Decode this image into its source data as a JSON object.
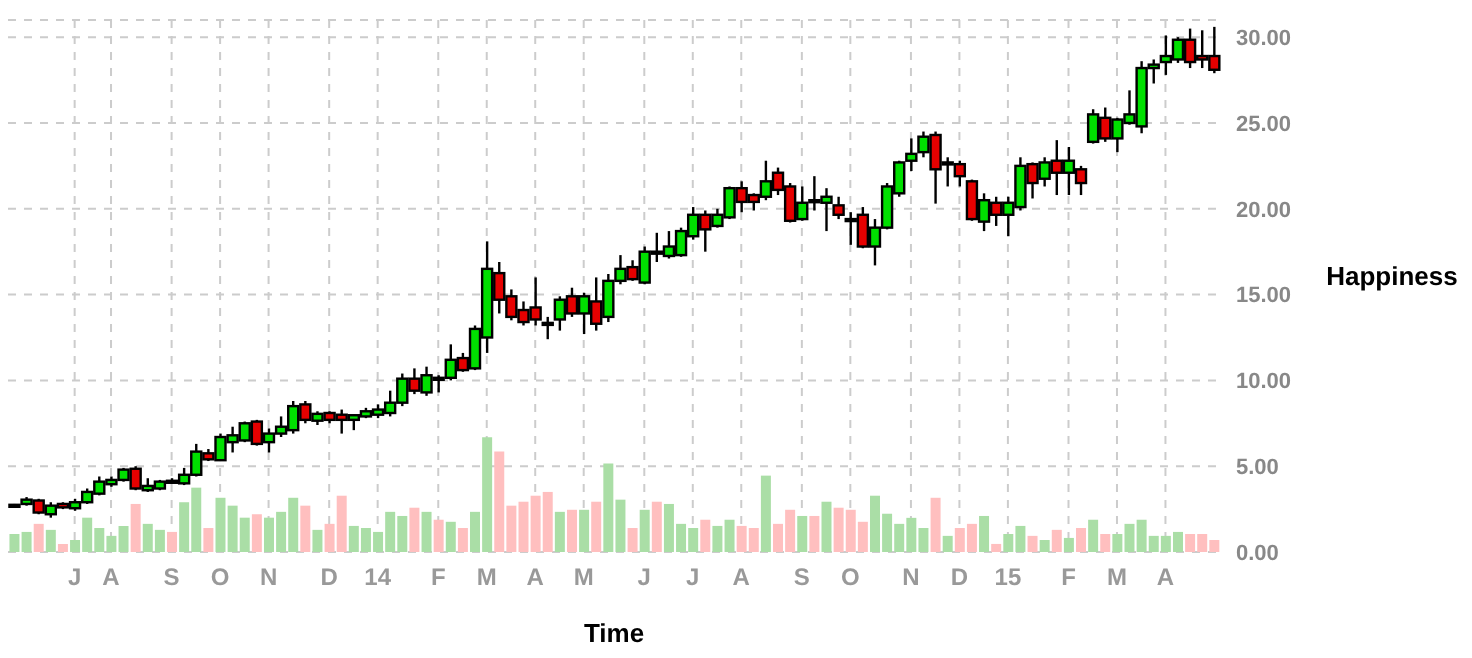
{
  "chart_data": {
    "type": "candlestick",
    "xlabel": "Time",
    "ylabel": "Happiness",
    "categories": [
      null,
      null,
      null,
      null,
      null,
      "J",
      null,
      null,
      "A",
      null,
      null,
      null,
      null,
      "S",
      null,
      null,
      null,
      "O",
      null,
      null,
      null,
      "N",
      null,
      null,
      null,
      null,
      "D",
      null,
      null,
      null,
      "14",
      null,
      null,
      null,
      null,
      "F",
      null,
      null,
      null,
      "M",
      null,
      null,
      null,
      "A",
      null,
      null,
      null,
      "M",
      null,
      null,
      null,
      null,
      "J",
      null,
      null,
      null,
      "J",
      null,
      null,
      null,
      "A",
      null,
      null,
      null,
      null,
      "S",
      null,
      null,
      null,
      "O",
      null,
      null,
      null,
      null,
      "N",
      null,
      null,
      null,
      "D",
      null,
      null,
      null,
      "15",
      null,
      null,
      null,
      null,
      "F",
      null,
      null,
      null,
      "M",
      null,
      null,
      null,
      "A",
      null,
      null,
      null,
      null
    ],
    "ohlc": [
      [
        2.7,
        2.8,
        2.6,
        2.75
      ],
      [
        2.8,
        3.2,
        2.7,
        3.05
      ],
      [
        3.0,
        3.1,
        2.2,
        2.3
      ],
      [
        2.2,
        2.9,
        2.0,
        2.7
      ],
      [
        2.8,
        2.9,
        2.5,
        2.6
      ],
      [
        2.55,
        3.1,
        2.4,
        2.9
      ],
      [
        2.9,
        3.7,
        2.8,
        3.5
      ],
      [
        3.4,
        4.4,
        3.3,
        4.1
      ],
      [
        3.95,
        4.4,
        3.8,
        4.2
      ],
      [
        4.2,
        4.9,
        4.1,
        4.8
      ],
      [
        4.85,
        5.0,
        3.6,
        3.7
      ],
      [
        3.6,
        4.3,
        3.5,
        3.85
      ],
      [
        3.7,
        4.2,
        3.6,
        4.1
      ],
      [
        4.15,
        4.3,
        4.0,
        4.1
      ],
      [
        4.0,
        4.9,
        3.9,
        4.5
      ],
      [
        4.5,
        6.3,
        4.4,
        5.85
      ],
      [
        5.75,
        6.0,
        5.3,
        5.4
      ],
      [
        5.35,
        6.9,
        5.3,
        6.7
      ],
      [
        6.4,
        7.3,
        5.8,
        6.8
      ],
      [
        6.5,
        7.6,
        6.4,
        7.5
      ],
      [
        7.6,
        7.7,
        6.2,
        6.3
      ],
      [
        6.4,
        7.2,
        5.8,
        6.9
      ],
      [
        6.9,
        7.9,
        6.7,
        7.3
      ],
      [
        7.1,
        8.8,
        6.9,
        8.5
      ],
      [
        8.6,
        8.8,
        7.5,
        7.7
      ],
      [
        7.65,
        8.2,
        7.4,
        8.05
      ],
      [
        8.1,
        8.2,
        7.5,
        7.7
      ],
      [
        8.0,
        8.3,
        6.9,
        7.7
      ],
      [
        7.7,
        8.0,
        7.1,
        7.97
      ],
      [
        7.9,
        8.4,
        7.8,
        8.2
      ],
      [
        8.0,
        8.6,
        7.8,
        8.3
      ],
      [
        8.1,
        9.4,
        7.9,
        8.7
      ],
      [
        8.7,
        10.4,
        8.5,
        10.1
      ],
      [
        10.1,
        10.7,
        9.2,
        9.4
      ],
      [
        9.3,
        10.8,
        9.1,
        10.3
      ],
      [
        10.15,
        10.3,
        9.3,
        10.1
      ],
      [
        10.15,
        12.1,
        10.0,
        11.2
      ],
      [
        11.3,
        11.6,
        10.5,
        10.6
      ],
      [
        10.7,
        13.2,
        10.6,
        13.0
      ],
      [
        12.5,
        18.1,
        11.6,
        16.5
      ],
      [
        16.25,
        16.9,
        13.9,
        14.7
      ],
      [
        14.9,
        15.3,
        13.5,
        13.7
      ],
      [
        14.1,
        14.6,
        13.2,
        13.4
      ],
      [
        14.25,
        16.0,
        13.2,
        13.55
      ],
      [
        13.35,
        13.7,
        12.4,
        13.28
      ],
      [
        13.55,
        14.9,
        12.9,
        14.7
      ],
      [
        14.9,
        15.4,
        13.7,
        13.9
      ],
      [
        13.9,
        15.1,
        12.7,
        14.9
      ],
      [
        14.6,
        16.0,
        12.9,
        13.3
      ],
      [
        13.7,
        16.2,
        13.4,
        15.8
      ],
      [
        15.8,
        17.3,
        15.6,
        16.5
      ],
      [
        16.6,
        17.0,
        15.8,
        15.9
      ],
      [
        15.7,
        17.8,
        15.6,
        17.5
      ],
      [
        17.5,
        18.6,
        16.9,
        17.4
      ],
      [
        17.25,
        18.7,
        17.1,
        17.8
      ],
      [
        17.3,
        18.9,
        17.2,
        18.7
      ],
      [
        18.4,
        20.1,
        18.2,
        19.65
      ],
      [
        19.65,
        19.9,
        17.5,
        18.8
      ],
      [
        19.0,
        20.0,
        18.9,
        19.65
      ],
      [
        19.5,
        21.3,
        19.4,
        21.2
      ],
      [
        21.2,
        21.6,
        19.8,
        20.4
      ],
      [
        20.8,
        20.9,
        19.9,
        20.4
      ],
      [
        20.7,
        22.8,
        20.5,
        21.6
      ],
      [
        22.1,
        22.4,
        20.8,
        21.1
      ],
      [
        21.3,
        21.5,
        19.2,
        19.3
      ],
      [
        19.4,
        21.3,
        19.3,
        20.35
      ],
      [
        20.5,
        21.9,
        19.9,
        20.45
      ],
      [
        20.35,
        21.2,
        18.7,
        20.7
      ],
      [
        20.2,
        20.7,
        19.4,
        19.65
      ],
      [
        19.4,
        19.8,
        17.9,
        19.35
      ],
      [
        19.65,
        20.1,
        17.7,
        17.8
      ],
      [
        17.8,
        19.4,
        16.7,
        18.9
      ],
      [
        18.9,
        21.5,
        18.8,
        21.3
      ],
      [
        20.9,
        22.8,
        20.7,
        22.7
      ],
      [
        22.8,
        24.1,
        22.2,
        23.2
      ],
      [
        23.3,
        24.5,
        23.0,
        24.2
      ],
      [
        24.3,
        24.5,
        20.3,
        22.3
      ],
      [
        22.6,
        23.0,
        21.3,
        22.7
      ],
      [
        22.6,
        22.8,
        21.3,
        21.9
      ],
      [
        21.6,
        21.7,
        19.3,
        19.4
      ],
      [
        19.25,
        20.9,
        18.7,
        20.5
      ],
      [
        20.35,
        20.7,
        19.0,
        19.65
      ],
      [
        19.65,
        20.7,
        18.4,
        20.35
      ],
      [
        20.1,
        23.0,
        19.9,
        22.5
      ],
      [
        22.6,
        22.7,
        20.6,
        21.5
      ],
      [
        21.75,
        23.0,
        21.3,
        22.7
      ],
      [
        22.8,
        24.0,
        20.8,
        22.1
      ],
      [
        22.1,
        23.6,
        20.8,
        22.8
      ],
      [
        22.3,
        22.5,
        20.8,
        21.5
      ],
      [
        23.9,
        25.8,
        23.8,
        25.5
      ],
      [
        25.3,
        25.9,
        23.9,
        24.1
      ],
      [
        24.1,
        25.3,
        23.3,
        25.2
      ],
      [
        25.0,
        26.9,
        24.9,
        25.5
      ],
      [
        24.8,
        28.6,
        24.4,
        28.2
      ],
      [
        28.2,
        28.7,
        27.3,
        28.4
      ],
      [
        28.55,
        30.1,
        27.8,
        28.9
      ],
      [
        28.7,
        30.0,
        28.5,
        29.85
      ],
      [
        29.85,
        30.5,
        28.2,
        28.55
      ],
      [
        28.9,
        30.4,
        28.2,
        28.7
      ],
      [
        28.9,
        30.6,
        27.9,
        28.1
      ]
    ],
    "colors": [
      "#00e000",
      "#00e000",
      "#e60000",
      "#00e000",
      "#e60000",
      "#00e000",
      "#00e000",
      "#00e000",
      "#00e000",
      "#00e000",
      "#e60000",
      "#00e000",
      "#00e000",
      "#e60000",
      "#00e000",
      "#00e000",
      "#e60000",
      "#00e000",
      "#00e000",
      "#00e000",
      "#e60000",
      "#00e000",
      "#00e000",
      "#00e000",
      "#e60000",
      "#00e000",
      "#e60000",
      "#e60000",
      "#00e000",
      "#00e000",
      "#00e000",
      "#00e000",
      "#00e000",
      "#e60000",
      "#00e000",
      "#e60000",
      "#00e000",
      "#e60000",
      "#00e000",
      "#00e000",
      "#e60000",
      "#e60000",
      "#e60000",
      "#e60000",
      "#e60000",
      "#00e000",
      "#e60000",
      "#00e000",
      "#e60000",
      "#00e000",
      "#00e000",
      "#e60000",
      "#00e000",
      "#e60000",
      "#00e000",
      "#00e000",
      "#00e000",
      "#e60000",
      "#00e000",
      "#00e000",
      "#e60000",
      "#e60000",
      "#00e000",
      "#e60000",
      "#e60000",
      "#00e000",
      "#e60000",
      "#00e000",
      "#e60000",
      "#e60000",
      "#e60000",
      "#00e000",
      "#00e000",
      "#00e000",
      "#00e000",
      "#00e000",
      "#e60000",
      "#00e000",
      "#e60000",
      "#e60000",
      "#00e000",
      "#e60000",
      "#00e000",
      "#00e000",
      "#e60000",
      "#00e000",
      "#e60000",
      "#00e000",
      "#e60000",
      "#00e000",
      "#e60000",
      "#00e000",
      "#00e000",
      "#00e000",
      "#00e000",
      "#00e000",
      "#00e000",
      "#e60000",
      "#e60000",
      "#e60000"
    ],
    "series": [
      {
        "type": "bar",
        "values": [
          1.05,
          1.17,
          1.64,
          1.29,
          0.47,
          0.7,
          2.0,
          1.4,
          0.94,
          1.52,
          2.8,
          1.64,
          1.29,
          1.17,
          2.9,
          3.75,
          1.4,
          3.16,
          2.7,
          2.0,
          2.2,
          2.0,
          2.34,
          3.16,
          2.7,
          1.29,
          1.64,
          3.28,
          1.52,
          1.4,
          1.17,
          2.34,
          2.1,
          2.58,
          2.34,
          1.88,
          1.76,
          1.4,
          2.34,
          6.68,
          5.86,
          2.7,
          2.93,
          3.28,
          3.5,
          2.34,
          2.46,
          2.46,
          2.93,
          5.16,
          3.05,
          1.4,
          2.46,
          2.93,
          2.8,
          1.64,
          1.4,
          1.88,
          1.52,
          1.88,
          1.52,
          1.4,
          4.45,
          1.64,
          2.46,
          2.1,
          2.1,
          2.93,
          2.58,
          2.46,
          1.76,
          3.28,
          2.23,
          1.64,
          1.99,
          1.4,
          3.16,
          0.94,
          1.4,
          1.64,
          2.1,
          0.47,
          1.05,
          1.52,
          0.94,
          0.7,
          1.29,
          0.82,
          1.4,
          1.88,
          1.05,
          1.05,
          1.64,
          1.88,
          0.94,
          0.94,
          1.17,
          1.05,
          1.05,
          0.7
        ],
        "colors": [
          "#aadea6",
          "#aadea6",
          "#ffbfbf",
          "#aadea6",
          "#ffbfbf",
          "#aadea6",
          "#aadea6",
          "#aadea6",
          "#aadea6",
          "#aadea6",
          "#ffbfbf",
          "#aadea6",
          "#aadea6",
          "#ffbfbf",
          "#aadea6",
          "#aadea6",
          "#ffbfbf",
          "#aadea6",
          "#aadea6",
          "#aadea6",
          "#ffbfbf",
          "#aadea6",
          "#aadea6",
          "#aadea6",
          "#ffbfbf",
          "#aadea6",
          "#ffbfbf",
          "#ffbfbf",
          "#aadea6",
          "#aadea6",
          "#aadea6",
          "#aadea6",
          "#aadea6",
          "#ffbfbf",
          "#aadea6",
          "#ffbfbf",
          "#aadea6",
          "#ffbfbf",
          "#aadea6",
          "#aadea6",
          "#ffbfbf",
          "#ffbfbf",
          "#ffbfbf",
          "#ffbfbf",
          "#ffbfbf",
          "#aadea6",
          "#ffbfbf",
          "#aadea6",
          "#ffbfbf",
          "#aadea6",
          "#aadea6",
          "#ffbfbf",
          "#aadea6",
          "#ffbfbf",
          "#aadea6",
          "#aadea6",
          "#aadea6",
          "#ffbfbf",
          "#aadea6",
          "#aadea6",
          "#ffbfbf",
          "#ffbfbf",
          "#aadea6",
          "#ffbfbf",
          "#ffbfbf",
          "#aadea6",
          "#ffbfbf",
          "#aadea6",
          "#ffbfbf",
          "#ffbfbf",
          "#ffbfbf",
          "#aadea6",
          "#aadea6",
          "#aadea6",
          "#aadea6",
          "#aadea6",
          "#ffbfbf",
          "#aadea6",
          "#ffbfbf",
          "#ffbfbf",
          "#aadea6",
          "#ffbfbf",
          "#aadea6",
          "#aadea6",
          "#ffbfbf",
          "#aadea6",
          "#ffbfbf",
          "#aadea6",
          "#ffbfbf",
          "#aadea6",
          "#ffbfbf",
          "#aadea6",
          "#aadea6",
          "#aadea6",
          "#aadea6",
          "#aadea6",
          "#aadea6",
          "#ffbfbf",
          "#ffbfbf",
          "#ffbfbf"
        ]
      }
    ],
    "ylim": [
      0,
      31
    ],
    "yticks": [
      {
        "value": 0,
        "label": "0.00"
      },
      {
        "value": 5,
        "label": "5.00"
      },
      {
        "value": 10,
        "label": "10.00"
      },
      {
        "value": 15,
        "label": "15.00"
      },
      {
        "value": 20,
        "label": "20.00"
      },
      {
        "value": 25,
        "label": "25.00"
      },
      {
        "value": 30,
        "label": "30.00"
      }
    ],
    "grid": true
  }
}
